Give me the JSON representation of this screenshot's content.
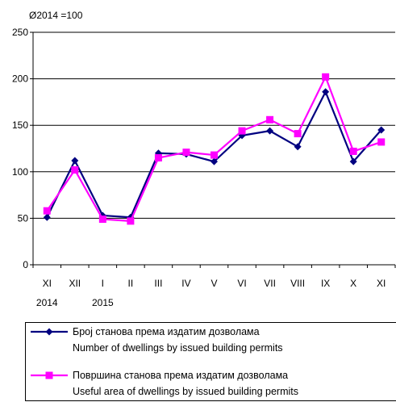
{
  "chart_data": {
    "type": "line",
    "unit_label": "Ø2014 =100",
    "categories": [
      "XI",
      "XII",
      "I",
      "II",
      "III",
      "IV",
      "V",
      "VI",
      "VII",
      "VIII",
      "IX",
      "X",
      "XI"
    ],
    "year_labels": [
      {
        "category_index": 0,
        "text": "2014"
      },
      {
        "category_index": 2,
        "text": "2015"
      }
    ],
    "ylim": [
      0,
      250
    ],
    "yticks": [
      0,
      50,
      100,
      150,
      200,
      250
    ],
    "grid": true,
    "legend_position": "bottom",
    "series": [
      {
        "name": "Број станова према издатим дозволама",
        "name_en": "Number of dwellings by issued building permits",
        "color": "#000080",
        "marker": "diamond",
        "values": [
          51,
          112,
          53,
          51,
          120,
          119,
          111,
          139,
          144,
          127,
          186,
          111,
          145
        ]
      },
      {
        "name": "Површина станова према издатим дозволама",
        "name_en": "Useful area of dwellings by issued building permits",
        "color": "#ff00ff",
        "marker": "square",
        "values": [
          58,
          102,
          49,
          47,
          115,
          121,
          118,
          144,
          156,
          141,
          202,
          122,
          132
        ]
      }
    ]
  }
}
